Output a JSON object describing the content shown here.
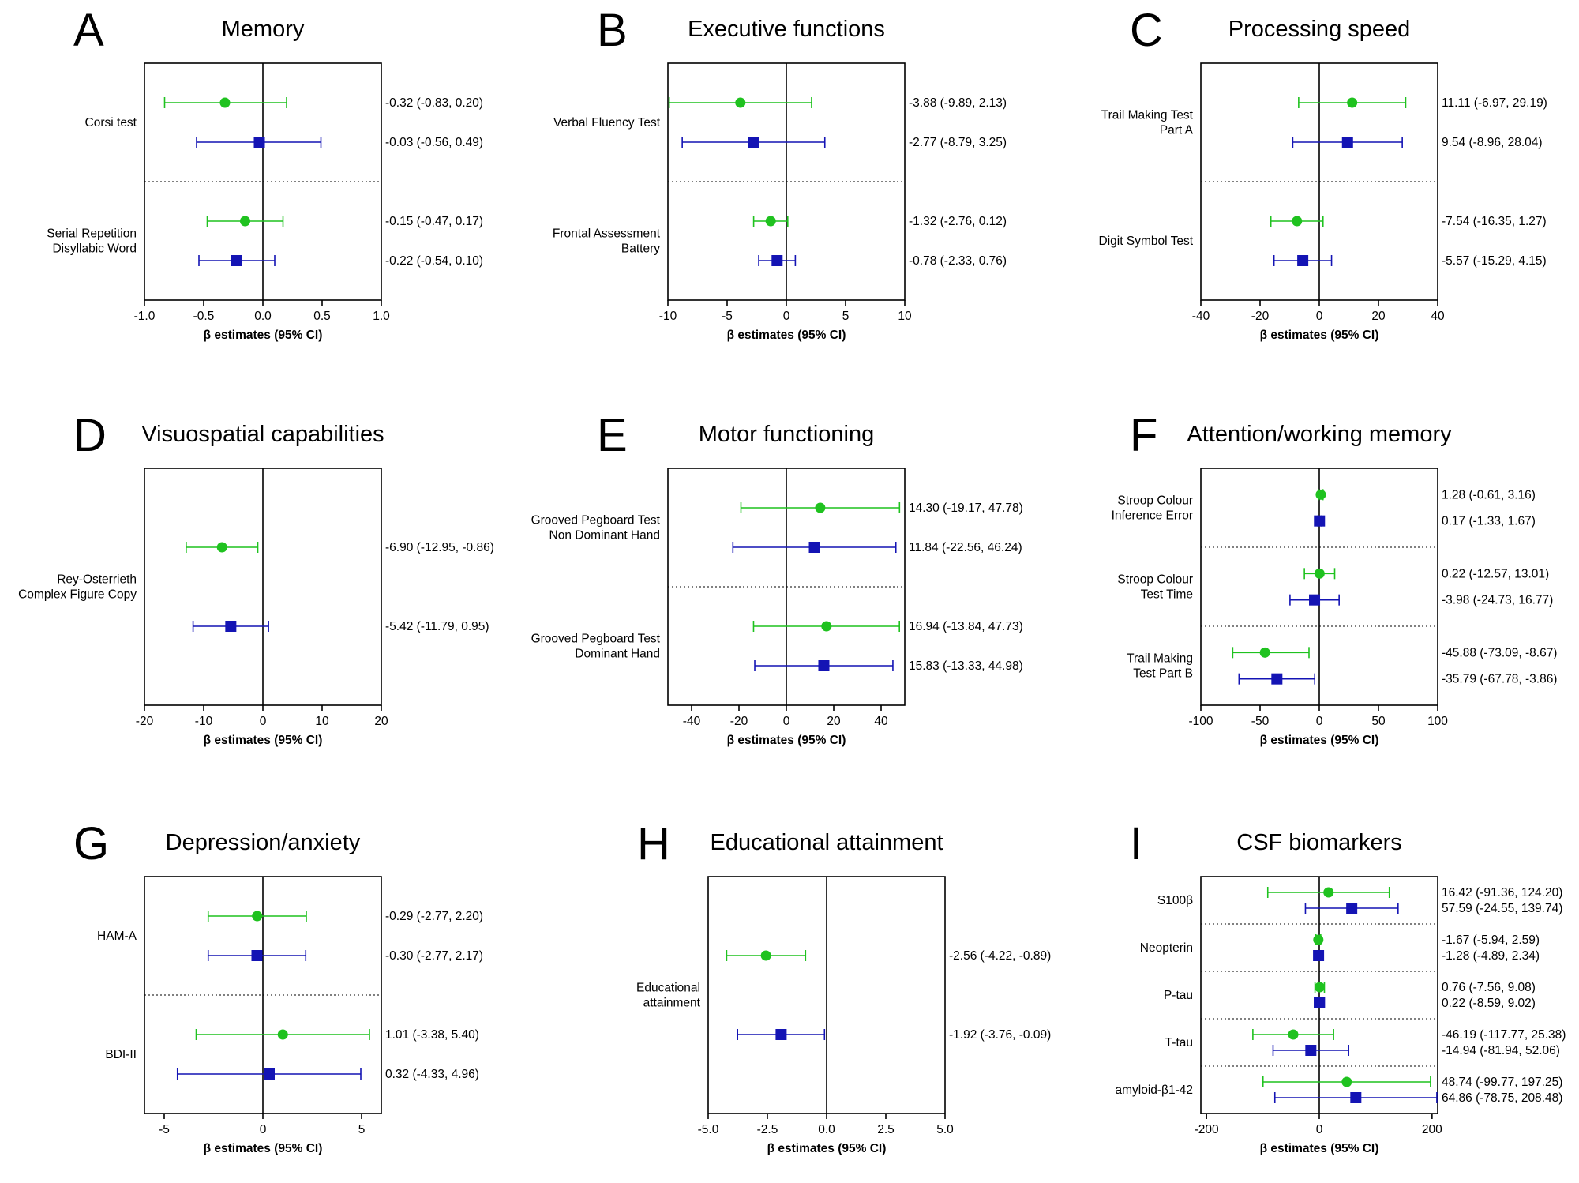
{
  "figure": {
    "xlabel": "β estimates (95% CI)"
  },
  "colors": {
    "green": "#1fc21f",
    "blue": "#1414b4",
    "frame": "#000000",
    "separator": "#000000"
  },
  "chart_data": [
    {
      "type": "forest",
      "letter": "A",
      "title": "Memory",
      "xlim": [
        -1.0,
        1.0
      ],
      "ticks": [
        -1.0,
        -0.5,
        0.0,
        0.5,
        1.0
      ],
      "tick_labels": [
        "-1.0",
        "-0.5",
        "0.0",
        "0.5",
        "1.0"
      ],
      "xlabel": "β estimates (95% CI)",
      "groups": [
        {
          "label": [
            "Corsi test"
          ],
          "points": [
            {
              "color": "green",
              "marker": "circle",
              "est": -0.32,
              "lo": -0.83,
              "hi": 0.2,
              "label": "-0.32 (-0.83, 0.20)"
            },
            {
              "color": "blue",
              "marker": "square",
              "est": -0.03,
              "lo": -0.56,
              "hi": 0.49,
              "label": "-0.03 (-0.56, 0.49)"
            }
          ]
        },
        {
          "label": [
            "Serial Repetition",
            "Disyllabic Word"
          ],
          "points": [
            {
              "color": "green",
              "marker": "circle",
              "est": -0.15,
              "lo": -0.47,
              "hi": 0.17,
              "label": "-0.15 (-0.47, 0.17)"
            },
            {
              "color": "blue",
              "marker": "square",
              "est": -0.22,
              "lo": -0.54,
              "hi": 0.1,
              "label": "-0.22 (-0.54, 0.10)"
            }
          ]
        }
      ]
    },
    {
      "type": "forest",
      "letter": "B",
      "title": "Executive functions",
      "xlim": [
        -10,
        10
      ],
      "ticks": [
        -10,
        -5,
        0,
        5,
        10
      ],
      "tick_labels": [
        "-10",
        "-5",
        "0",
        "5",
        "10"
      ],
      "xlabel": "β estimates (95% CI)",
      "groups": [
        {
          "label": [
            "Verbal Fluency Test"
          ],
          "points": [
            {
              "color": "green",
              "marker": "circle",
              "est": -3.88,
              "lo": -9.89,
              "hi": 2.13,
              "label": "-3.88 (-9.89, 2.13)"
            },
            {
              "color": "blue",
              "marker": "square",
              "est": -2.77,
              "lo": -8.79,
              "hi": 3.25,
              "label": "-2.77 (-8.79, 3.25)"
            }
          ]
        },
        {
          "label": [
            "Frontal Assessment",
            "Battery"
          ],
          "points": [
            {
              "color": "green",
              "marker": "circle",
              "est": -1.32,
              "lo": -2.76,
              "hi": 0.12,
              "label": "-1.32 (-2.76, 0.12)"
            },
            {
              "color": "blue",
              "marker": "square",
              "est": -0.78,
              "lo": -2.33,
              "hi": 0.76,
              "label": "-0.78 (-2.33, 0.76)"
            }
          ]
        }
      ]
    },
    {
      "type": "forest",
      "letter": "C",
      "title": "Processing speed",
      "xlim": [
        -40,
        40
      ],
      "ticks": [
        -40,
        -20,
        0,
        20,
        40
      ],
      "tick_labels": [
        "-40",
        "-20",
        "0",
        "20",
        "40"
      ],
      "xlabel": "β estimates (95% CI)",
      "groups": [
        {
          "label": [
            "Trail Making Test",
            "Part A"
          ],
          "points": [
            {
              "color": "green",
              "marker": "circle",
              "est": 11.11,
              "lo": -6.97,
              "hi": 29.19,
              "label": "11.11 (-6.97, 29.19)"
            },
            {
              "color": "blue",
              "marker": "square",
              "est": 9.54,
              "lo": -8.96,
              "hi": 28.04,
              "label": "9.54 (-8.96, 28.04)"
            }
          ]
        },
        {
          "label": [
            "Digit Symbol Test"
          ],
          "points": [
            {
              "color": "green",
              "marker": "circle",
              "est": -7.54,
              "lo": -16.35,
              "hi": 1.27,
              "label": "-7.54 (-16.35, 1.27)"
            },
            {
              "color": "blue",
              "marker": "square",
              "est": -5.57,
              "lo": -15.29,
              "hi": 4.15,
              "label": "-5.57 (-15.29, 4.15)"
            }
          ]
        }
      ]
    },
    {
      "type": "forest",
      "letter": "D",
      "title": "Visuospatial capabilities",
      "xlim": [
        -20,
        20
      ],
      "ticks": [
        -20,
        -10,
        0,
        10,
        20
      ],
      "tick_labels": [
        "-20",
        "-10",
        "0",
        "10",
        "20"
      ],
      "xlabel": "β estimates (95% CI)",
      "groups": [
        {
          "label": [
            "Rey-Osterrieth",
            "Complex Figure Copy"
          ],
          "points": [
            {
              "color": "green",
              "marker": "circle",
              "est": -6.9,
              "lo": -12.95,
              "hi": -0.86,
              "label": "-6.90 (-12.95, -0.86)"
            },
            {
              "color": "blue",
              "marker": "square",
              "est": -5.42,
              "lo": -11.79,
              "hi": 0.95,
              "label": "-5.42 (-11.79, 0.95)"
            }
          ]
        }
      ]
    },
    {
      "type": "forest",
      "letter": "E",
      "title": "Motor functioning",
      "xlim": [
        -50,
        50
      ],
      "ticks": [
        -40,
        -20,
        0,
        20,
        40
      ],
      "tick_labels": [
        "-40",
        "-20",
        "0",
        "20",
        "40"
      ],
      "xlabel": "β estimates (95% CI)",
      "groups": [
        {
          "label": [
            "Grooved Pegboard Test",
            "Non Dominant Hand"
          ],
          "points": [
            {
              "color": "green",
              "marker": "circle",
              "est": 14.3,
              "lo": -19.17,
              "hi": 47.78,
              "label": "14.30 (-19.17, 47.78)"
            },
            {
              "color": "blue",
              "marker": "square",
              "est": 11.84,
              "lo": -22.56,
              "hi": 46.24,
              "label": "11.84 (-22.56, 46.24)"
            }
          ]
        },
        {
          "label": [
            "Grooved Pegboard Test",
            "Dominant Hand"
          ],
          "points": [
            {
              "color": "green",
              "marker": "circle",
              "est": 16.94,
              "lo": -13.84,
              "hi": 47.73,
              "label": "16.94 (-13.84, 47.73)"
            },
            {
              "color": "blue",
              "marker": "square",
              "est": 15.83,
              "lo": -13.33,
              "hi": 44.98,
              "label": "15.83 (-13.33, 44.98)"
            }
          ]
        }
      ]
    },
    {
      "type": "forest",
      "letter": "F",
      "title": "Attention/working memory",
      "xlim": [
        -100,
        100
      ],
      "ticks": [
        -100,
        -50,
        0,
        50,
        100
      ],
      "tick_labels": [
        "-100",
        "-50",
        "0",
        "50",
        "100"
      ],
      "xlabel": "β estimates (95% CI)",
      "groups": [
        {
          "label": [
            "Stroop Colour",
            "Inference Error"
          ],
          "points": [
            {
              "color": "green",
              "marker": "circle",
              "est": 1.28,
              "lo": -0.61,
              "hi": 3.16,
              "label": "1.28 (-0.61, 3.16)"
            },
            {
              "color": "blue",
              "marker": "square",
              "est": 0.17,
              "lo": -1.33,
              "hi": 1.67,
              "label": "0.17 (-1.33, 1.67)"
            }
          ]
        },
        {
          "label": [
            "Stroop Colour",
            "Test Time"
          ],
          "points": [
            {
              "color": "green",
              "marker": "circle",
              "est": 0.22,
              "lo": -12.57,
              "hi": 13.01,
              "label": "0.22 (-12.57, 13.01)"
            },
            {
              "color": "blue",
              "marker": "square",
              "est": -3.98,
              "lo": -24.73,
              "hi": 16.77,
              "label": "-3.98 (-24.73, 16.77)"
            }
          ]
        },
        {
          "label": [
            "Trail Making",
            "Test Part B"
          ],
          "points": [
            {
              "color": "green",
              "marker": "circle",
              "est": -45.88,
              "lo": -73.09,
              "hi": -8.67,
              "label": "-45.88 (-73.09, -8.67)"
            },
            {
              "color": "blue",
              "marker": "square",
              "est": -35.79,
              "lo": -67.78,
              "hi": -3.86,
              "label": "-35.79 (-67.78, -3.86)"
            }
          ]
        }
      ]
    },
    {
      "type": "forest",
      "letter": "G",
      "title": "Depression/anxiety",
      "xlim": [
        -6,
        6
      ],
      "ticks": [
        -5,
        0,
        5
      ],
      "tick_labels": [
        "-5",
        "0",
        "5"
      ],
      "xlabel": "β estimates (95% CI)",
      "groups": [
        {
          "label": [
            "HAM-A"
          ],
          "points": [
            {
              "color": "green",
              "marker": "circle",
              "est": -0.29,
              "lo": -2.77,
              "hi": 2.2,
              "label": "-0.29 (-2.77, 2.20)"
            },
            {
              "color": "blue",
              "marker": "square",
              "est": -0.3,
              "lo": -2.77,
              "hi": 2.17,
              "label": "-0.30 (-2.77, 2.17)"
            }
          ]
        },
        {
          "label": [
            "BDI-II"
          ],
          "points": [
            {
              "color": "green",
              "marker": "circle",
              "est": 1.01,
              "lo": -3.38,
              "hi": 5.4,
              "label": "1.01 (-3.38, 5.40)"
            },
            {
              "color": "blue",
              "marker": "square",
              "est": 0.32,
              "lo": -4.33,
              "hi": 4.96,
              "label": "0.32 (-4.33, 4.96)"
            }
          ]
        }
      ]
    },
    {
      "type": "forest",
      "letter": "H",
      "title": "Educational attainment",
      "xlim": [
        -5.0,
        5.0
      ],
      "ticks": [
        -5.0,
        -2.5,
        0.0,
        2.5,
        5.0
      ],
      "tick_labels": [
        "-5.0",
        "-2.5",
        "0.0",
        "2.5",
        "5.0"
      ],
      "xlabel": "β estimates (95% CI)",
      "groups": [
        {
          "label": [
            "Educational",
            "attainment"
          ],
          "points": [
            {
              "color": "green",
              "marker": "circle",
              "est": -2.56,
              "lo": -4.22,
              "hi": -0.89,
              "label": "-2.56 (-4.22, -0.89)"
            },
            {
              "color": "blue",
              "marker": "square",
              "est": -1.92,
              "lo": -3.76,
              "hi": -0.09,
              "label": "-1.92 (-3.76, -0.09)"
            }
          ]
        }
      ]
    },
    {
      "type": "forest",
      "letter": "I",
      "title": "CSF biomarkers",
      "xlim": [
        -210,
        210
      ],
      "ticks": [
        -200,
        0,
        200
      ],
      "tick_labels": [
        "-200",
        "0",
        "200"
      ],
      "xlabel": "β estimates (95% CI)",
      "groups": [
        {
          "label": [
            "S100β"
          ],
          "points": [
            {
              "color": "green",
              "marker": "circle",
              "est": 16.42,
              "lo": -91.36,
              "hi": 124.2,
              "label": "16.42 (-91.36, 124.20)"
            },
            {
              "color": "blue",
              "marker": "square",
              "est": 57.59,
              "lo": -24.55,
              "hi": 139.74,
              "label": "57.59 (-24.55, 139.74)"
            }
          ]
        },
        {
          "label": [
            "Neopterin"
          ],
          "points": [
            {
              "color": "green",
              "marker": "circle",
              "est": -1.67,
              "lo": -5.94,
              "hi": 2.59,
              "label": "-1.67 (-5.94, 2.59)"
            },
            {
              "color": "blue",
              "marker": "square",
              "est": -1.28,
              "lo": -4.89,
              "hi": 2.34,
              "label": "-1.28 (-4.89, 2.34)"
            }
          ]
        },
        {
          "label": [
            "P-tau"
          ],
          "points": [
            {
              "color": "green",
              "marker": "circle",
              "est": 0.76,
              "lo": -7.56,
              "hi": 9.08,
              "label": "0.76 (-7.56, 9.08)"
            },
            {
              "color": "blue",
              "marker": "square",
              "est": 0.22,
              "lo": -8.59,
              "hi": 9.02,
              "label": "0.22 (-8.59, 9.02)"
            }
          ]
        },
        {
          "label": [
            "T-tau"
          ],
          "points": [
            {
              "color": "green",
              "marker": "circle",
              "est": -46.19,
              "lo": -117.77,
              "hi": 25.38,
              "label": "-46.19 (-117.77, 25.38)"
            },
            {
              "color": "blue",
              "marker": "square",
              "est": -14.94,
              "lo": -81.94,
              "hi": 52.06,
              "label": "-14.94 (-81.94, 52.06)"
            }
          ]
        },
        {
          "label": [
            "amyloid-β1-42"
          ],
          "points": [
            {
              "color": "green",
              "marker": "circle",
              "est": 48.74,
              "lo": -99.77,
              "hi": 197.25,
              "label": "48.74 (-99.77, 197.25)"
            },
            {
              "color": "blue",
              "marker": "square",
              "est": 64.86,
              "lo": -78.75,
              "hi": 208.48,
              "label": "64.86 (-78.75, 208.48)"
            }
          ]
        }
      ]
    }
  ]
}
